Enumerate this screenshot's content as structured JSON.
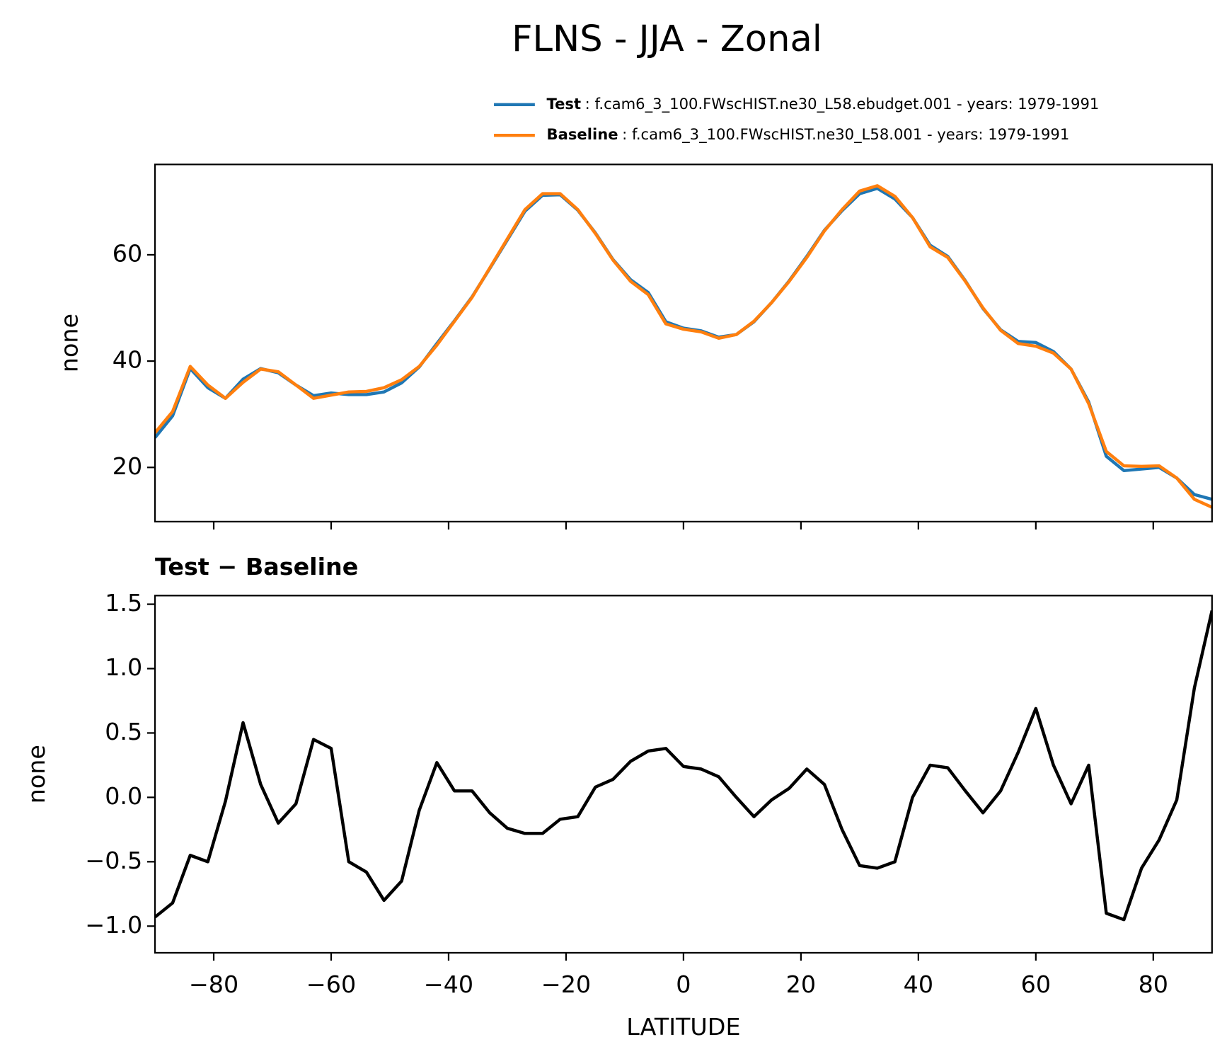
{
  "chart_data": [
    {
      "type": "line",
      "title": "FLNS - JJA - Zonal",
      "ylabel": "none",
      "x": [
        -90,
        -87,
        -84,
        -81,
        -78,
        -75,
        -72,
        -69,
        -66,
        -63,
        -60,
        -57,
        -54,
        -51,
        -48,
        -45,
        -42,
        -39,
        -36,
        -33,
        -30,
        -27,
        -24,
        -21,
        -18,
        -15,
        -12,
        -9,
        -6,
        -3,
        0,
        3,
        6,
        9,
        12,
        15,
        18,
        21,
        24,
        27,
        30,
        33,
        36,
        39,
        42,
        45,
        48,
        51,
        54,
        57,
        60,
        63,
        66,
        69,
        72,
        75,
        78,
        81,
        84,
        87,
        90
      ],
      "series": [
        {
          "name": "Test",
          "label": ": f.cam6_3_100.FWscHIST.ne30_L58.ebudget.001 - years: 1979-1991",
          "color": "#1f77b4",
          "values": [
            25.6,
            29.7,
            38.6,
            35.0,
            33.0,
            36.6,
            38.6,
            37.8,
            35.5,
            33.5,
            34.0,
            33.7,
            33.7,
            34.2,
            35.9,
            38.9,
            43.3,
            47.6,
            52.1,
            57.4,
            62.8,
            68.2,
            71.2,
            71.3,
            68.4,
            64.1,
            59.1,
            55.3,
            52.9,
            47.4,
            46.2,
            45.7,
            44.5,
            45.0,
            47.4,
            51.0,
            55.1,
            59.7,
            64.6,
            68.3,
            71.5,
            72.5,
            70.5,
            67.0,
            61.8,
            59.7,
            55.1,
            49.9,
            45.9,
            43.7,
            43.5,
            41.8,
            38.5,
            32.3,
            22.1,
            19.4,
            19.7,
            20.0,
            18.0,
            14.9,
            14.0
          ]
        },
        {
          "name": "Baseline",
          "label": ": f.cam6_3_100.FWscHIST.ne30_L58.001 - years: 1979-1991",
          "color": "#ff7f0e",
          "values": [
            26.5,
            30.5,
            39,
            35.5,
            33,
            36,
            38.5,
            38,
            35.5,
            33,
            33.6,
            34.2,
            34.3,
            35,
            36.5,
            39,
            43,
            47.5,
            52,
            57.5,
            63,
            68.5,
            71.5,
            71.5,
            68.5,
            64,
            59,
            55,
            52.5,
            47,
            46,
            45.5,
            44.3,
            45,
            47.5,
            51,
            55,
            59.5,
            64.5,
            68.5,
            72,
            73,
            71,
            67,
            61.5,
            59.5,
            55,
            50,
            45.8,
            43.3,
            42.8,
            41.5,
            38.5,
            32,
            23,
            20.3,
            20.2,
            20.3,
            18,
            14,
            12.5
          ]
        }
      ],
      "xlim": [
        -90,
        90
      ],
      "xticks": [
        -80,
        -60,
        -40,
        -20,
        0,
        20,
        40,
        60,
        80
      ],
      "ylim": [
        9.8,
        77.0
      ],
      "yticks": [
        20,
        40,
        60
      ]
    },
    {
      "type": "line",
      "title": "Test − Baseline",
      "xlabel": "LATITUDE",
      "ylabel": "none",
      "x": [
        -90,
        -87,
        -84,
        -81,
        -78,
        -75,
        -72,
        -69,
        -66,
        -63,
        -60,
        -57,
        -54,
        -51,
        -48,
        -45,
        -42,
        -39,
        -36,
        -33,
        -30,
        -27,
        -24,
        -21,
        -18,
        -15,
        -12,
        -9,
        -6,
        -3,
        0,
        3,
        6,
        9,
        12,
        15,
        18,
        21,
        24,
        27,
        30,
        33,
        36,
        39,
        42,
        45,
        48,
        51,
        54,
        57,
        60,
        63,
        66,
        69,
        72,
        75,
        78,
        81,
        84,
        87,
        90
      ],
      "series": [
        {
          "color": "#000000",
          "values": [
            -0.93,
            -0.82,
            -0.45,
            -0.5,
            -0.03,
            0.58,
            0.1,
            -0.2,
            -0.05,
            0.45,
            0.38,
            -0.5,
            -0.58,
            -0.8,
            -0.65,
            -0.1,
            0.27,
            0.05,
            0.05,
            -0.12,
            -0.24,
            -0.28,
            -0.28,
            -0.17,
            -0.15,
            0.08,
            0.14,
            0.28,
            0.36,
            0.38,
            0.24,
            0.22,
            0.16,
            0.0,
            -0.15,
            -0.02,
            0.07,
            0.22,
            0.1,
            -0.25,
            -0.53,
            -0.55,
            -0.5,
            0.0,
            0.25,
            0.23,
            0.05,
            -0.12,
            0.05,
            0.35,
            0.69,
            0.25,
            -0.05,
            0.25,
            -0.9,
            -0.95,
            -0.55,
            -0.33,
            -0.02,
            0.85,
            1.45
          ]
        }
      ],
      "xlim": [
        -90,
        90
      ],
      "xticks": [
        {
          "value": -80,
          "label": "−80"
        },
        {
          "value": -60,
          "label": "−60"
        },
        {
          "value": -40,
          "label": "−40"
        },
        {
          "value": -20,
          "label": "−20"
        },
        0,
        20,
        40,
        60,
        80
      ],
      "ylim": [
        -1.207,
        1.567
      ],
      "yticks": [
        {
          "value": -1.0,
          "label": "−1.0"
        },
        {
          "value": -0.5,
          "label": "−0.5"
        },
        {
          "value": 0,
          "label": "0.0"
        },
        0.5,
        {
          "value": 1.0,
          "label": "1.0"
        },
        1.5
      ]
    }
  ]
}
